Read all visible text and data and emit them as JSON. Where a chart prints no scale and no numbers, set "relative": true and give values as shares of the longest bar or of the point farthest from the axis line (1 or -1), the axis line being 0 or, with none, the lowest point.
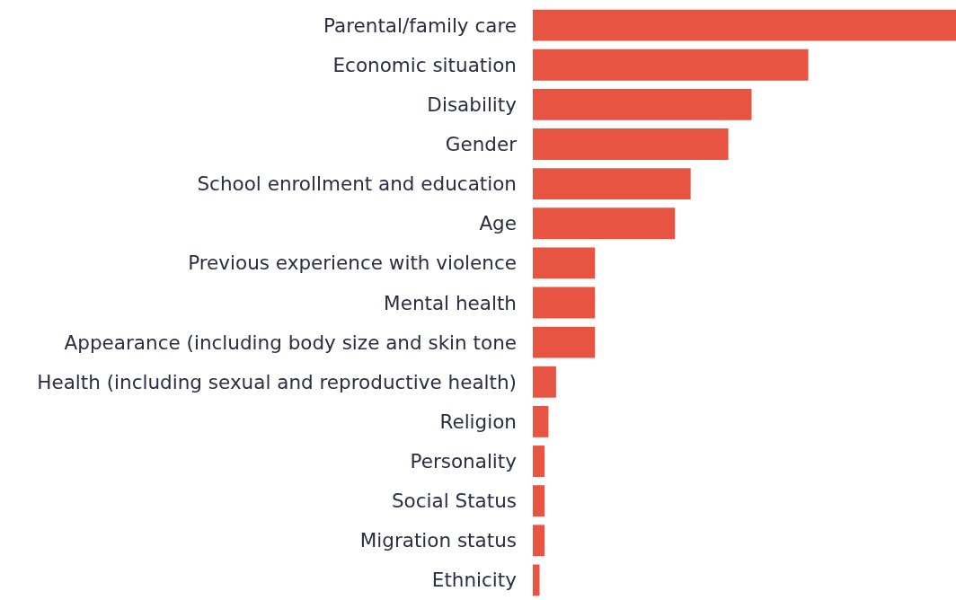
{
  "chart_data": {
    "type": "bar",
    "orientation": "horizontal",
    "relative": true,
    "color": "#e85442",
    "categories": [
      "Parental/family care",
      "Economic situation",
      "Disability",
      "Gender",
      "School enrollment and education",
      "Age",
      "Previous experience with violence",
      "Mental health",
      "Appearance (including body size and skin tone",
      "Health (including sexual and reproductive health)",
      "Religion",
      "Personality",
      "Social Status",
      "Migration status",
      "Ethnicity"
    ],
    "values": [
      1,
      0.651,
      0.517,
      0.462,
      0.373,
      0.336,
      0.147,
      0.147,
      0.147,
      0.055,
      0.037,
      0.028,
      0.028,
      0.028,
      0.016
    ]
  }
}
